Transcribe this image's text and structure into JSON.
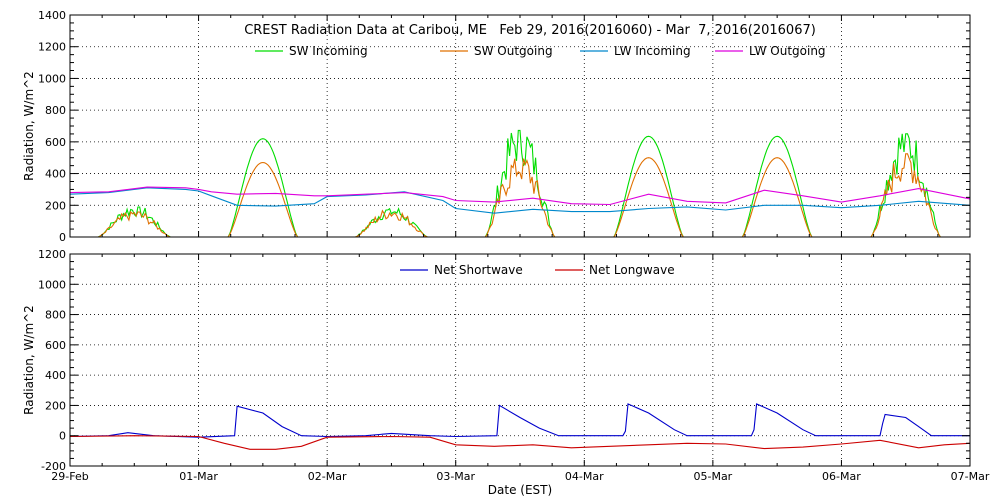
{
  "page_title": "CREST Radiation Data at Caribou, ME   Feb 29, 2016(2016060) - Mar  7, 2016(2016067)",
  "chart_data": [
    {
      "type": "line",
      "panel": "top",
      "ylabel": "Radiation, W/m^2",
      "ylim": [
        0,
        1400
      ],
      "yticks": [
        0,
        200,
        400,
        600,
        800,
        1000,
        1200,
        1400
      ],
      "xlim_days": [
        0,
        7
      ],
      "grid": true,
      "legend_placement": "top",
      "series": [
        {
          "name": "SW Incoming",
          "color": "#00dd00",
          "days": [
            [
              0.5,
              180
            ],
            [
              1.5,
              620
            ],
            [
              2.5,
              170
            ],
            [
              3.5,
              640
            ],
            [
              4.5,
              635
            ],
            [
              5.5,
              635
            ],
            [
              6.5,
              620
            ]
          ]
        },
        {
          "name": "SW Outgoing",
          "color": "#e07000",
          "days": [
            [
              0.5,
              150
            ],
            [
              1.5,
              470
            ],
            [
              2.5,
              160
            ],
            [
              3.5,
              470
            ],
            [
              4.5,
              500
            ],
            [
              5.5,
              500
            ],
            [
              6.5,
              500
            ]
          ]
        },
        {
          "name": "LW Incoming",
          "color": "#0088cc",
          "x": [
            0,
            0.3,
            0.6,
            0.9,
            1.0,
            1.1,
            1.3,
            1.6,
            1.9,
            2.0,
            2.3,
            2.6,
            2.9,
            3.0,
            3.3,
            3.6,
            3.9,
            4.2,
            4.5,
            4.8,
            5.1,
            5.4,
            5.7,
            6.0,
            6.3,
            6.6,
            7.0
          ],
          "y": [
            270,
            280,
            310,
            300,
            290,
            260,
            200,
            195,
            210,
            255,
            265,
            285,
            230,
            180,
            150,
            175,
            160,
            160,
            180,
            190,
            170,
            200,
            200,
            185,
            200,
            225,
            200
          ]
        },
        {
          "name": "LW Outgoing",
          "color": "#dd00dd",
          "x": [
            0,
            0.3,
            0.6,
            0.9,
            1.0,
            1.1,
            1.3,
            1.6,
            1.9,
            2.0,
            2.3,
            2.6,
            2.9,
            3.0,
            3.3,
            3.6,
            3.9,
            4.2,
            4.5,
            4.8,
            5.1,
            5.4,
            5.7,
            6.0,
            6.3,
            6.6,
            7.0
          ],
          "y": [
            280,
            285,
            315,
            310,
            300,
            285,
            270,
            275,
            260,
            260,
            270,
            280,
            255,
            230,
            220,
            245,
            210,
            205,
            270,
            225,
            215,
            295,
            260,
            220,
            260,
            305,
            240
          ]
        }
      ]
    },
    {
      "type": "line",
      "panel": "bottom",
      "xlabel": "Date (EST)",
      "ylabel": "Radiation, W/m^2",
      "ylim": [
        -200,
        1200
      ],
      "yticks": [
        -200,
        0,
        200,
        400,
        600,
        800,
        1000,
        1200
      ],
      "xlim_days": [
        0,
        7
      ],
      "xtick_labels": [
        "29-Feb",
        "01-Mar",
        "02-Mar",
        "03-Mar",
        "04-Mar",
        "05-Mar",
        "06-Mar",
        "07-Mar"
      ],
      "grid": true,
      "legend_placement": "top",
      "series": [
        {
          "name": "Net Shortwave",
          "color": "#0000cc",
          "x": [
            0,
            0.3,
            0.45,
            0.55,
            0.65,
            1.0,
            1.28,
            1.3,
            1.5,
            1.65,
            1.8,
            2.0,
            2.3,
            2.5,
            2.6,
            2.8,
            3.0,
            3.32,
            3.34,
            3.5,
            3.65,
            3.8,
            4.0,
            4.3,
            4.32,
            4.34,
            4.5,
            4.7,
            4.8,
            5.0,
            5.3,
            5.32,
            5.34,
            5.5,
            5.7,
            5.8,
            6.0,
            6.3,
            6.32,
            6.34,
            6.5,
            6.6,
            6.7,
            7.0
          ],
          "y": [
            -5,
            0,
            20,
            10,
            0,
            -10,
            0,
            195,
            150,
            60,
            0,
            -5,
            0,
            15,
            10,
            0,
            -5,
            0,
            200,
            120,
            50,
            0,
            0,
            0,
            30,
            210,
            150,
            40,
            0,
            0,
            0,
            40,
            210,
            150,
            40,
            0,
            0,
            0,
            80,
            140,
            120,
            60,
            0,
            0
          ]
        },
        {
          "name": "Net Longwave",
          "color": "#cc0000",
          "x": [
            0,
            0.5,
            1.0,
            1.2,
            1.4,
            1.6,
            1.8,
            2.0,
            2.5,
            2.8,
            3.0,
            3.3,
            3.6,
            3.9,
            4.2,
            4.5,
            4.8,
            5.1,
            5.4,
            5.7,
            6.0,
            6.3,
            6.6,
            6.8,
            7.0
          ],
          "y": [
            -5,
            0,
            -5,
            -50,
            -90,
            -90,
            -70,
            -10,
            -5,
            -10,
            -60,
            -70,
            -60,
            -80,
            -70,
            -60,
            -50,
            -55,
            -85,
            -75,
            -55,
            -30,
            -80,
            -60,
            -50
          ]
        }
      ]
    }
  ]
}
